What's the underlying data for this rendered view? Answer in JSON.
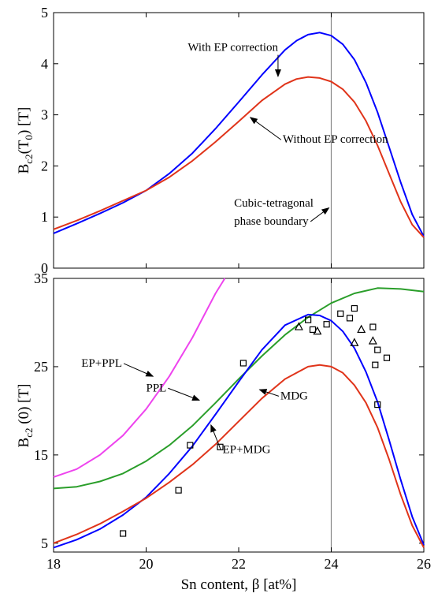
{
  "chart_data": [
    {
      "type": "line",
      "ylabel_main": "B",
      "ylabel_sub": "c2",
      "ylabel_rest": "(T",
      "ylabel_sub2": "0",
      "ylabel_end": ") [T]",
      "xlim": [
        18,
        26
      ],
      "ylim": [
        0,
        5
      ],
      "yticks": [
        "0",
        "1",
        "2",
        "3",
        "4",
        "5"
      ],
      "vline_x": 24,
      "series": [
        {
          "color": "#0000ff",
          "x": [
            18,
            18.5,
            19,
            19.5,
            20,
            20.5,
            21,
            21.5,
            22,
            22.5,
            23,
            23.25,
            23.5,
            23.75,
            24,
            24.25,
            24.5,
            24.75,
            25,
            25.25,
            25.5,
            25.75,
            26
          ],
          "y": [
            0.68,
            0.87,
            1.07,
            1.28,
            1.52,
            1.85,
            2.25,
            2.73,
            3.25,
            3.78,
            4.27,
            4.45,
            4.57,
            4.61,
            4.55,
            4.38,
            4.08,
            3.63,
            3.05,
            2.37,
            1.68,
            1.05,
            0.62
          ]
        },
        {
          "color": "#e0341a",
          "x": [
            18,
            18.5,
            19,
            19.5,
            20,
            20.5,
            21,
            21.5,
            22,
            22.5,
            23,
            23.25,
            23.5,
            23.75,
            24,
            24.25,
            24.5,
            24.75,
            25,
            25.25,
            25.5,
            25.75,
            26
          ],
          "y": [
            0.76,
            0.93,
            1.12,
            1.32,
            1.52,
            1.78,
            2.1,
            2.47,
            2.87,
            3.28,
            3.6,
            3.7,
            3.74,
            3.72,
            3.65,
            3.5,
            3.25,
            2.88,
            2.4,
            1.85,
            1.3,
            0.85,
            0.6
          ]
        }
      ],
      "annotations": [
        {
          "text": "With EP correction",
          "x": 20.9,
          "y": 4.25,
          "ax": 22.85,
          "ay": 3.75
        },
        {
          "text": "Without EP correction",
          "x": 22.95,
          "y": 2.45,
          "ax": 22.25,
          "ay": 2.95
        },
        {
          "text": "Cubic-tetragonal",
          "x": 21.9,
          "y": 1.2
        },
        {
          "text": "phase boundary",
          "x": 21.9,
          "y": 0.85,
          "ax": 23.95,
          "ay": 1.18
        }
      ]
    },
    {
      "type": "line",
      "xlabel": "Sn content, β [at%]",
      "ylabel_main": "B",
      "ylabel_sub": "c2",
      "ylabel_end": " (0) [T]",
      "xlim": [
        18,
        26
      ],
      "ylim": [
        4,
        35
      ],
      "xticks": [
        "18",
        "20",
        "22",
        "24",
        "26"
      ],
      "yticks": [
        "5",
        "15",
        "25",
        "35"
      ],
      "vline_x": 24,
      "series": [
        {
          "color": "#ee44ee",
          "x": [
            18,
            18.5,
            19,
            19.5,
            20,
            20.5,
            21,
            21.5,
            21.7
          ],
          "y": [
            12.5,
            13.4,
            15.0,
            17.2,
            20.2,
            23.9,
            28.3,
            33.3,
            35.0
          ]
        },
        {
          "color": "#2a9e2a",
          "x": [
            18,
            18.5,
            19,
            19.5,
            20,
            20.5,
            21,
            21.5,
            22,
            22.5,
            23,
            23.5,
            24,
            24.5,
            25,
            25.5,
            26
          ],
          "y": [
            11.2,
            11.4,
            12.0,
            12.9,
            14.3,
            16.1,
            18.3,
            20.9,
            23.6,
            26.2,
            28.6,
            30.6,
            32.2,
            33.3,
            33.9,
            33.8,
            33.5
          ]
        },
        {
          "color": "#0000ff",
          "x": [
            18,
            18.5,
            19,
            19.5,
            20,
            20.5,
            21,
            21.5,
            22,
            22.5,
            23,
            23.5,
            23.75,
            24,
            24.25,
            24.5,
            24.75,
            25,
            25.25,
            25.5,
            25.75,
            26
          ],
          "y": [
            4.5,
            5.4,
            6.6,
            8.2,
            10.2,
            12.9,
            16.0,
            19.6,
            23.3,
            26.9,
            29.7,
            30.9,
            30.8,
            30.2,
            29.0,
            27.1,
            24.4,
            21.0,
            16.7,
            12.2,
            8.0,
            4.8
          ]
        },
        {
          "color": "#e0341a",
          "x": [
            18,
            18.5,
            19,
            19.5,
            20,
            20.5,
            21,
            21.5,
            22,
            22.5,
            23,
            23.5,
            23.75,
            24,
            24.25,
            24.5,
            24.75,
            25,
            25.25,
            25.5,
            25.75,
            26
          ],
          "y": [
            5.0,
            6.0,
            7.2,
            8.6,
            10.1,
            11.9,
            13.9,
            16.2,
            18.8,
            21.4,
            23.6,
            25.0,
            25.2,
            25.0,
            24.3,
            22.9,
            20.9,
            18.1,
            14.5,
            10.5,
            7.0,
            4.5
          ]
        }
      ],
      "squares": [
        [
          19.5,
          6.1
        ],
        [
          20.7,
          11.0
        ],
        [
          20.95,
          16.1
        ],
        [
          21.6,
          15.9
        ],
        [
          22.1,
          25.4
        ],
        [
          23.5,
          30.3
        ],
        [
          23.6,
          29.2
        ],
        [
          23.9,
          29.8
        ],
        [
          24.2,
          31.0
        ],
        [
          24.4,
          30.5
        ],
        [
          24.5,
          31.6
        ],
        [
          24.9,
          29.5
        ],
        [
          24.95,
          25.2
        ],
        [
          25.0,
          26.9
        ],
        [
          25.2,
          26.0
        ],
        [
          25.0,
          20.7
        ]
      ],
      "triangles": [
        [
          23.3,
          29.5
        ],
        [
          23.7,
          29.0
        ],
        [
          24.5,
          27.7
        ],
        [
          24.65,
          29.2
        ],
        [
          24.9,
          27.9
        ]
      ],
      "annotations": [
        {
          "text": "EP+PPL",
          "x": 18.6,
          "y": 25.0,
          "ax": 20.15,
          "ay": 23.9
        },
        {
          "text": "PPL",
          "x": 20.0,
          "y": 22.2,
          "ax": 21.15,
          "ay": 21.2
        },
        {
          "text": "MDG",
          "x": 22.9,
          "y": 21.3,
          "ax": 22.45,
          "ay": 22.4
        },
        {
          "text": "EP+MDG",
          "x": 21.65,
          "y": 15.2,
          "ax": 21.4,
          "ay": 18.4
        }
      ]
    }
  ]
}
